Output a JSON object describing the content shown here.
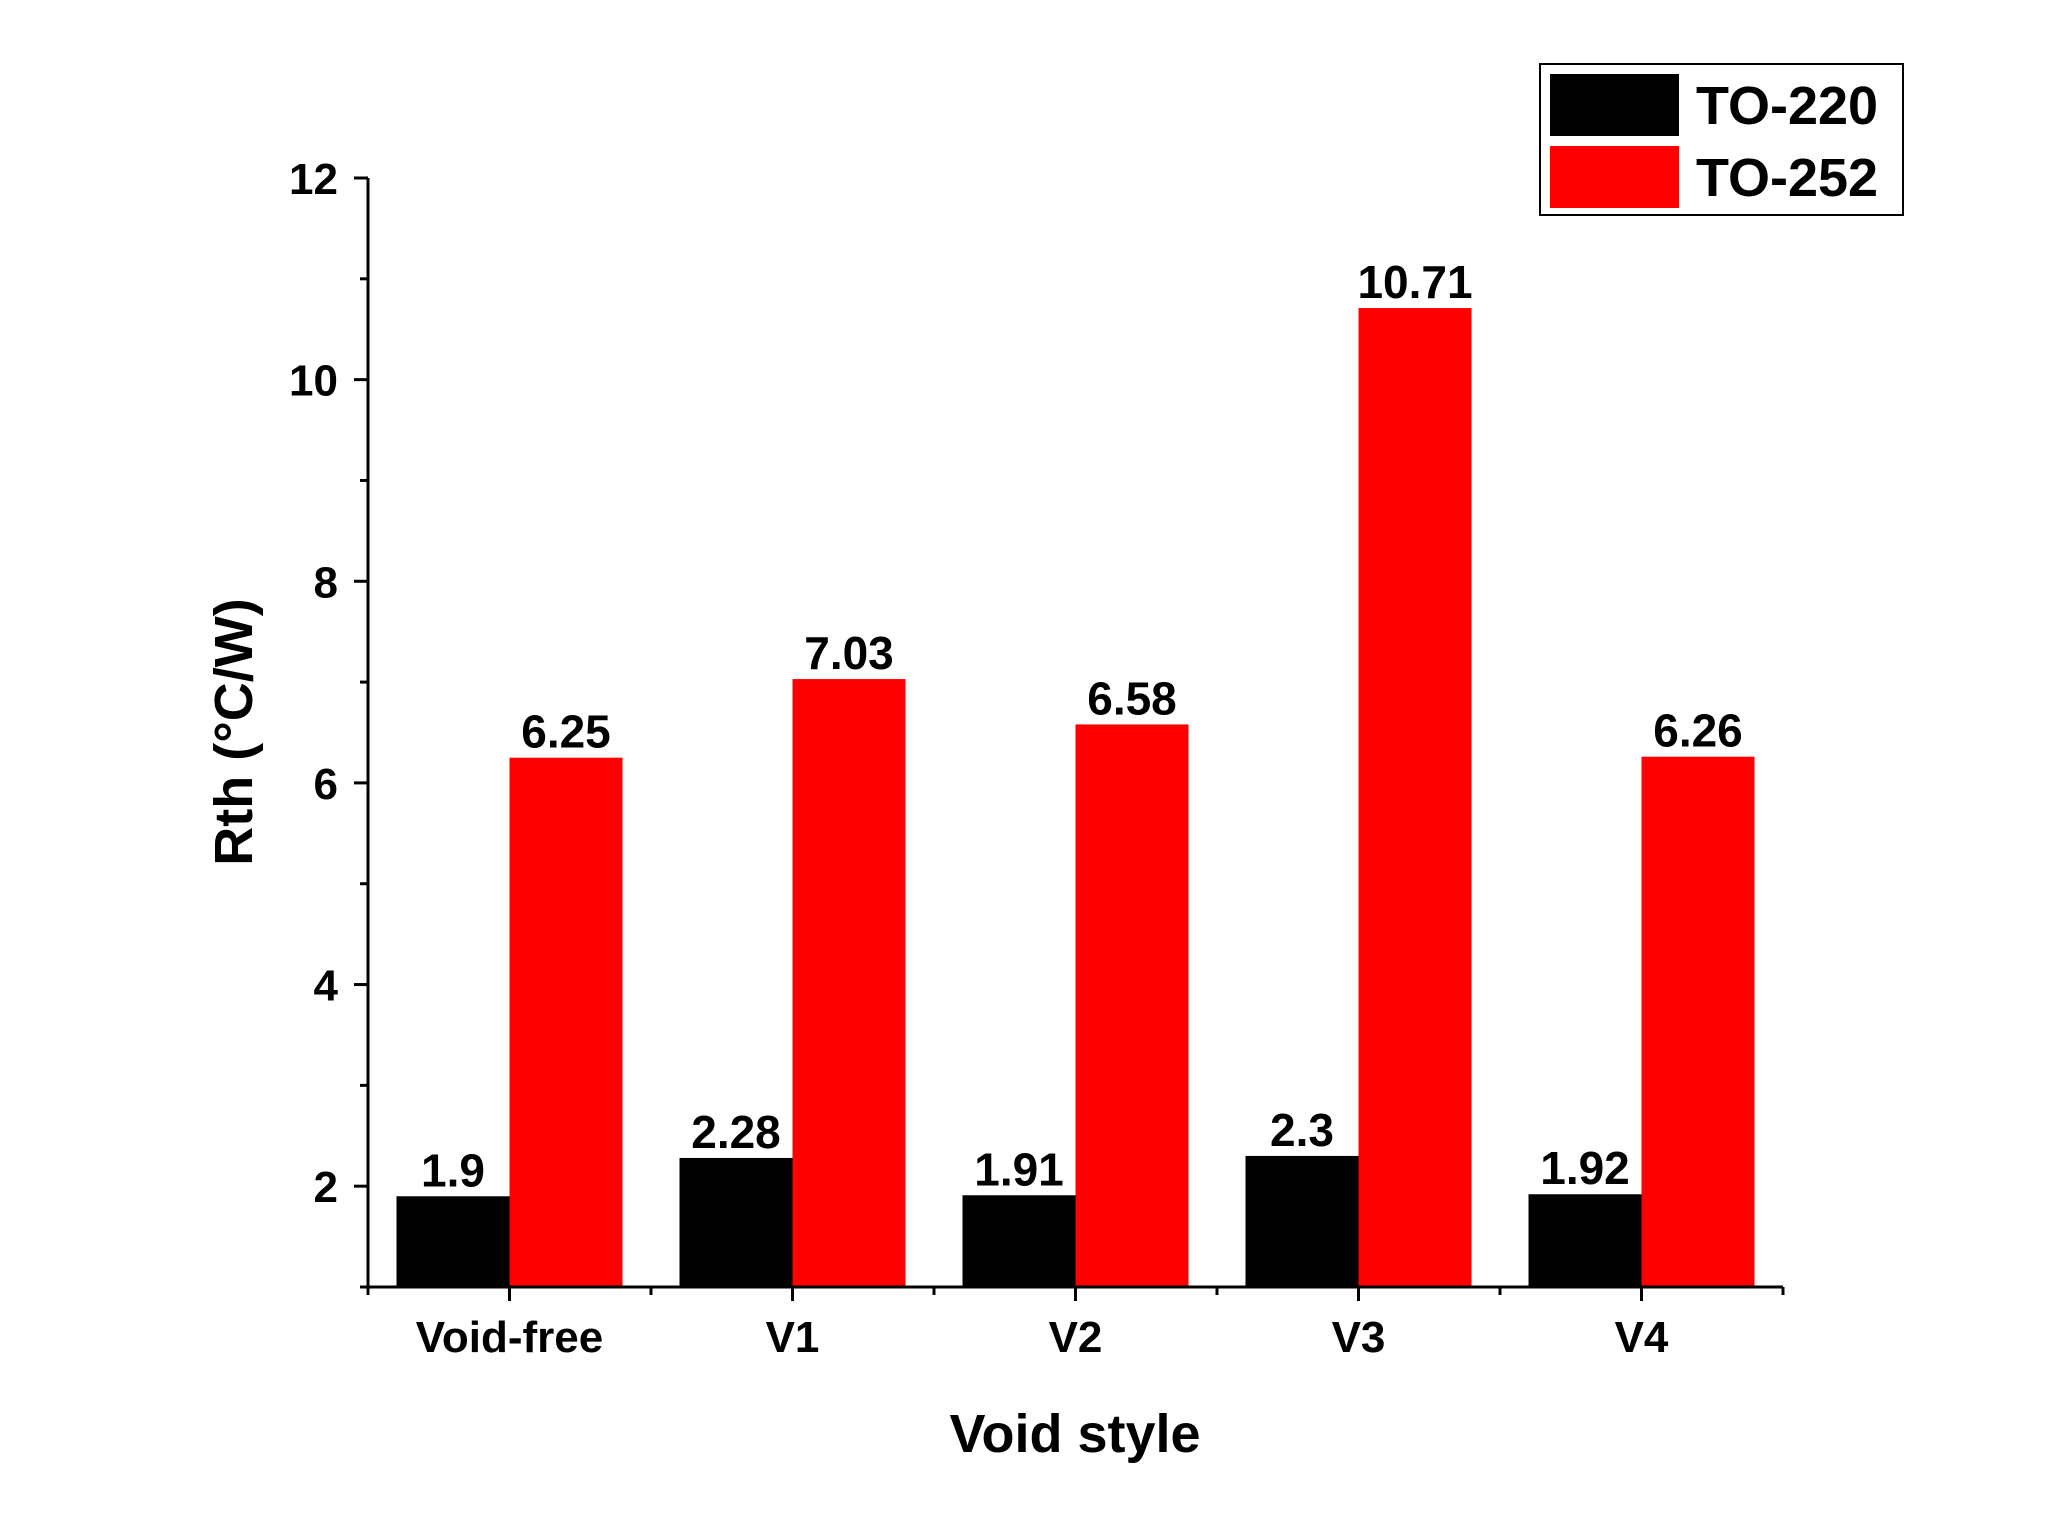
{
  "chart_data": {
    "type": "bar",
    "xlabel": "Void style",
    "ylabel": "Rth (°C/W)",
    "categories": [
      "Void-free",
      "V1",
      "V2",
      "V3",
      "V4"
    ],
    "series": [
      {
        "name": "TO-220",
        "color": "#000000",
        "values": [
          1.9,
          2.28,
          1.91,
          2.3,
          1.92
        ],
        "labels": [
          "1.9",
          "2.28",
          "1.91",
          "2.3",
          "1.92"
        ]
      },
      {
        "name": "TO-252",
        "color": "#ff0000",
        "values": [
          6.25,
          7.03,
          6.58,
          10.71,
          6.26
        ],
        "labels": [
          "6.25",
          "7.03",
          "6.58",
          "10.71",
          "6.26"
        ]
      }
    ],
    "ylim": [
      1,
      12
    ],
    "yticks": [
      2,
      4,
      6,
      8,
      10,
      12
    ],
    "ytick_labels": [
      "2",
      "4",
      "6",
      "8",
      "10",
      "12"
    ],
    "yminor_step": 1,
    "grid": false,
    "legend_position": "top-right"
  }
}
